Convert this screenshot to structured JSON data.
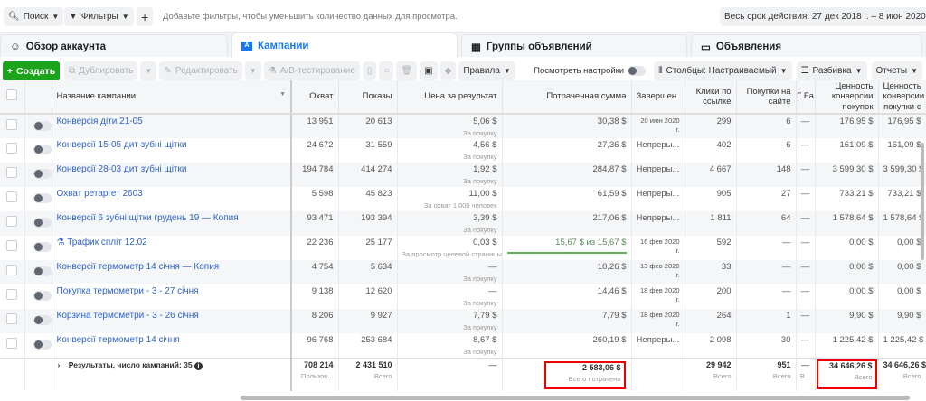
{
  "topbar": {
    "search": "Поиск",
    "filters": "Фильтры",
    "add": "+",
    "hint": "Добавьте фильтры, чтобы уменьшить количество данных для просмотра.",
    "date_range": "Весь срок действия: 27 дек 2018 г. – 8 июн 2020 г."
  },
  "tabs": [
    {
      "label": "Обзор аккаунта",
      "icon": "account-overview-icon"
    },
    {
      "label": "Кампании",
      "icon": "folder-icon",
      "active": true
    },
    {
      "label": "Группы объявлений",
      "icon": "grid-icon"
    },
    {
      "label": "Объявления",
      "icon": "ad-icon"
    }
  ],
  "toolbar": {
    "create": "Создать",
    "duplicate": "Дублировать",
    "edit": "Редактировать",
    "ab_test": "A/B-тестирование",
    "rules": "Правила",
    "view_settings": "Посмотреть настройки",
    "columns": "Столбцы: Настраиваемый",
    "breakdown": "Разбивка",
    "reports": "Отчеты"
  },
  "columns": [
    "Название кампании",
    "Охват",
    "Показы",
    "Цена за результат",
    "Потраченная сумма",
    "Завершен",
    "Клики по ссылке",
    "Покупки на сайте",
    "Г Fa",
    "Ценность конверсии покупок",
    "Ценность конверсии покупки с"
  ],
  "rows": [
    {
      "name": "Конверсія діти 21-05",
      "reach": "13 951",
      "impr": "20 613",
      "cpr": "5,06 $",
      "cpr_sub": "За покупку",
      "spent": "30,38 $",
      "end": "20 июн 2020 г.",
      "clicks": "299",
      "purch": "6",
      "g": "—",
      "val": "176,95 $",
      "val2": "176,95 $"
    },
    {
      "name": "Конверсії 15-05 дит зубні щітки",
      "reach": "24 672",
      "impr": "31 559",
      "cpr": "4,56 $",
      "cpr_sub": "За покупку",
      "spent": "27,36 $",
      "end": "Непреры...",
      "clicks": "402",
      "purch": "6",
      "g": "—",
      "val": "161,09 $",
      "val2": "161,09 $"
    },
    {
      "name": "Конверсії 28-03 дит зубні щітки",
      "reach": "194 784",
      "impr": "414 274",
      "cpr": "1,92 $",
      "cpr_sub": "За покупку",
      "spent": "284,87 $",
      "end": "Непреры...",
      "clicks": "4 667",
      "purch": "148",
      "g": "—",
      "val": "3 599,30 $",
      "val2": "3 599,30 $"
    },
    {
      "name": "Охват ретаргет 2603",
      "reach": "5 598",
      "impr": "45 823",
      "cpr": "11,00 $",
      "cpr_sub": "За охват 1 000 человек",
      "spent": "61,59 $",
      "end": "Непреры...",
      "clicks": "905",
      "purch": "27",
      "g": "—",
      "val": "733,21 $",
      "val2": "733,21 $"
    },
    {
      "name": "Конверсії 6 зубні щітки грудень 19 — Копия",
      "reach": "93 471",
      "impr": "193 394",
      "cpr": "3,39 $",
      "cpr_sub": "За покупку",
      "spent": "217,06 $",
      "end": "Непреры...",
      "clicks": "1 811",
      "purch": "64",
      "g": "—",
      "val": "1 578,64 $",
      "val2": "1 578,64 $"
    },
    {
      "name": "Трафик спліт 12.02",
      "ab": true,
      "reach": "22 236",
      "impr": "25 177",
      "cpr": "0,03 $",
      "cpr_sub": "За просмотр целевой страницы",
      "spent": "15,67 $ из 15,67 $",
      "spent_progress": 1.0,
      "end": "16 фев 2020 г.",
      "clicks": "592",
      "purch": "—",
      "g": "—",
      "val": "0,00 $",
      "val2": "0,00 $"
    },
    {
      "name": "Конверсії термометр 14 січня — Копия",
      "reach": "4 754",
      "impr": "5 634",
      "cpr": "—",
      "cpr_sub": "За покупку",
      "spent": "10,26 $",
      "end": "13 фев 2020 г.",
      "clicks": "33",
      "purch": "—",
      "g": "—",
      "val": "0,00 $",
      "val2": "0,00 $"
    },
    {
      "name": "Покупка термометри - 3 - 27 січня",
      "reach": "9 138",
      "impr": "12 620",
      "cpr": "—",
      "cpr_sub": "За покупку",
      "spent": "14,46 $",
      "end": "18 фев 2020 г.",
      "clicks": "200",
      "purch": "—",
      "g": "—",
      "val": "0,00 $",
      "val2": "0,00 $"
    },
    {
      "name": "Корзина термометри - 3 - 26 січня",
      "reach": "8 206",
      "impr": "9 927",
      "cpr": "7,79 $",
      "cpr_sub": "За покупку",
      "spent": "7,79 $",
      "end": "18 фев 2020 г.",
      "clicks": "264",
      "purch": "1",
      "g": "—",
      "val": "9,90 $",
      "val2": "9,90 $"
    },
    {
      "name": "Конверсії термометр 14 січня",
      "reach": "96 768",
      "impr": "253 684",
      "cpr": "8,67 $",
      "cpr_sub": "За покупку",
      "spent": "260,19 $",
      "end": "Непреры...",
      "clicks": "2 098",
      "purch": "30",
      "g": "—",
      "val": "1 225,42 $",
      "val2": "1 225,42 $"
    }
  ],
  "summary": {
    "label": "Результаты, число кампаний: 35",
    "reach": "708 214",
    "reach_sub": "Пользов...",
    "impr": "2 431 510",
    "impr_sub": "Всего",
    "cpr": "—",
    "spent": "2 583,06 $",
    "spent_sub": "Всего потрачено",
    "clicks": "29 942",
    "clicks_sub": "Всего",
    "purch": "951",
    "purch_sub": "Всего",
    "g": "—",
    "g_sub": "В...",
    "val": "34 646,26 $",
    "val_sub": "Всего",
    "val2": "34 646,26 $",
    "val2_sub": "Всего"
  },
  "colors": {
    "accent": "#1877f2",
    "create": "#1ba31b",
    "highlight": "#e00000"
  }
}
